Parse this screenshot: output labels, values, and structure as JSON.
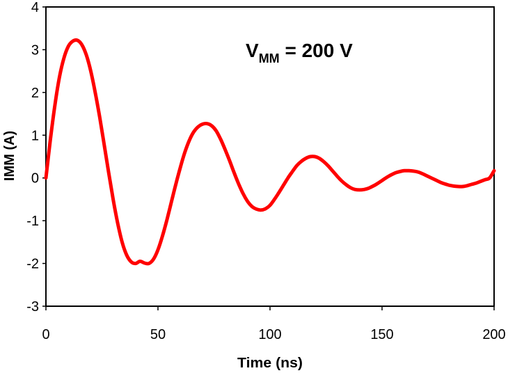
{
  "chart_data": {
    "type": "line",
    "title": "",
    "xlabel": "Time (ns)",
    "ylabel": "IMM (A)",
    "xlim": [
      0,
      200
    ],
    "ylim": [
      -3,
      4
    ],
    "x_ticks": [
      0,
      50,
      100,
      150,
      200
    ],
    "y_ticks": [
      -3,
      -2,
      -1,
      0,
      1,
      2,
      3,
      4
    ],
    "x_tick_labels": [
      "0",
      "50",
      "100",
      "150",
      "200"
    ],
    "y_tick_labels": [
      "-3",
      "-2",
      "-1",
      "0",
      "1",
      "2",
      "3",
      "4"
    ],
    "grid": false,
    "legend": null,
    "annotation": {
      "main": "V",
      "subscript": "MM",
      "rest": " = 200 V"
    },
    "series": [
      {
        "name": "IMM",
        "color": "#ff0000",
        "x": [
          0,
          2,
          4,
          6,
          8,
          10,
          12,
          14,
          16,
          18,
          20,
          22,
          24,
          26,
          28,
          30,
          32,
          34,
          36,
          38,
          40,
          42,
          44,
          46,
          48,
          50,
          52,
          54,
          56,
          58,
          60,
          62,
          64,
          66,
          68,
          70,
          72,
          74,
          76,
          78,
          80,
          82,
          84,
          86,
          88,
          90,
          92,
          94,
          96,
          98,
          100,
          102,
          104,
          106,
          108,
          110,
          112,
          114,
          116,
          118,
          120,
          122,
          124,
          126,
          128,
          130,
          132,
          134,
          136,
          138,
          140,
          142,
          144,
          146,
          148,
          150,
          152,
          154,
          156,
          158,
          160,
          162,
          164,
          166,
          168,
          170,
          172,
          174,
          176,
          178,
          180,
          182,
          184,
          186,
          188,
          190,
          192,
          194,
          196,
          198,
          200
        ],
        "values": [
          0.0,
          0.9,
          1.7,
          2.35,
          2.8,
          3.08,
          3.2,
          3.22,
          3.12,
          2.88,
          2.5,
          2.0,
          1.42,
          0.78,
          0.12,
          -0.5,
          -1.05,
          -1.5,
          -1.8,
          -1.96,
          -2.0,
          -1.95,
          -1.99,
          -2.0,
          -1.9,
          -1.68,
          -1.36,
          -0.98,
          -0.56,
          -0.14,
          0.25,
          0.6,
          0.88,
          1.08,
          1.2,
          1.26,
          1.27,
          1.22,
          1.1,
          0.9,
          0.66,
          0.4,
          0.12,
          -0.14,
          -0.37,
          -0.55,
          -0.67,
          -0.73,
          -0.75,
          -0.72,
          -0.64,
          -0.5,
          -0.34,
          -0.17,
          0.0,
          0.15,
          0.29,
          0.39,
          0.46,
          0.5,
          0.5,
          0.46,
          0.38,
          0.28,
          0.16,
          0.04,
          -0.07,
          -0.16,
          -0.23,
          -0.27,
          -0.28,
          -0.27,
          -0.24,
          -0.19,
          -0.13,
          -0.06,
          0.01,
          0.07,
          0.12,
          0.15,
          0.17,
          0.17,
          0.16,
          0.14,
          0.1,
          0.05,
          0.0,
          -0.05,
          -0.1,
          -0.14,
          -0.17,
          -0.19,
          -0.2,
          -0.2,
          -0.18,
          -0.15,
          -0.12,
          -0.08,
          -0.04,
          0.0,
          0.17
        ]
      }
    ]
  }
}
